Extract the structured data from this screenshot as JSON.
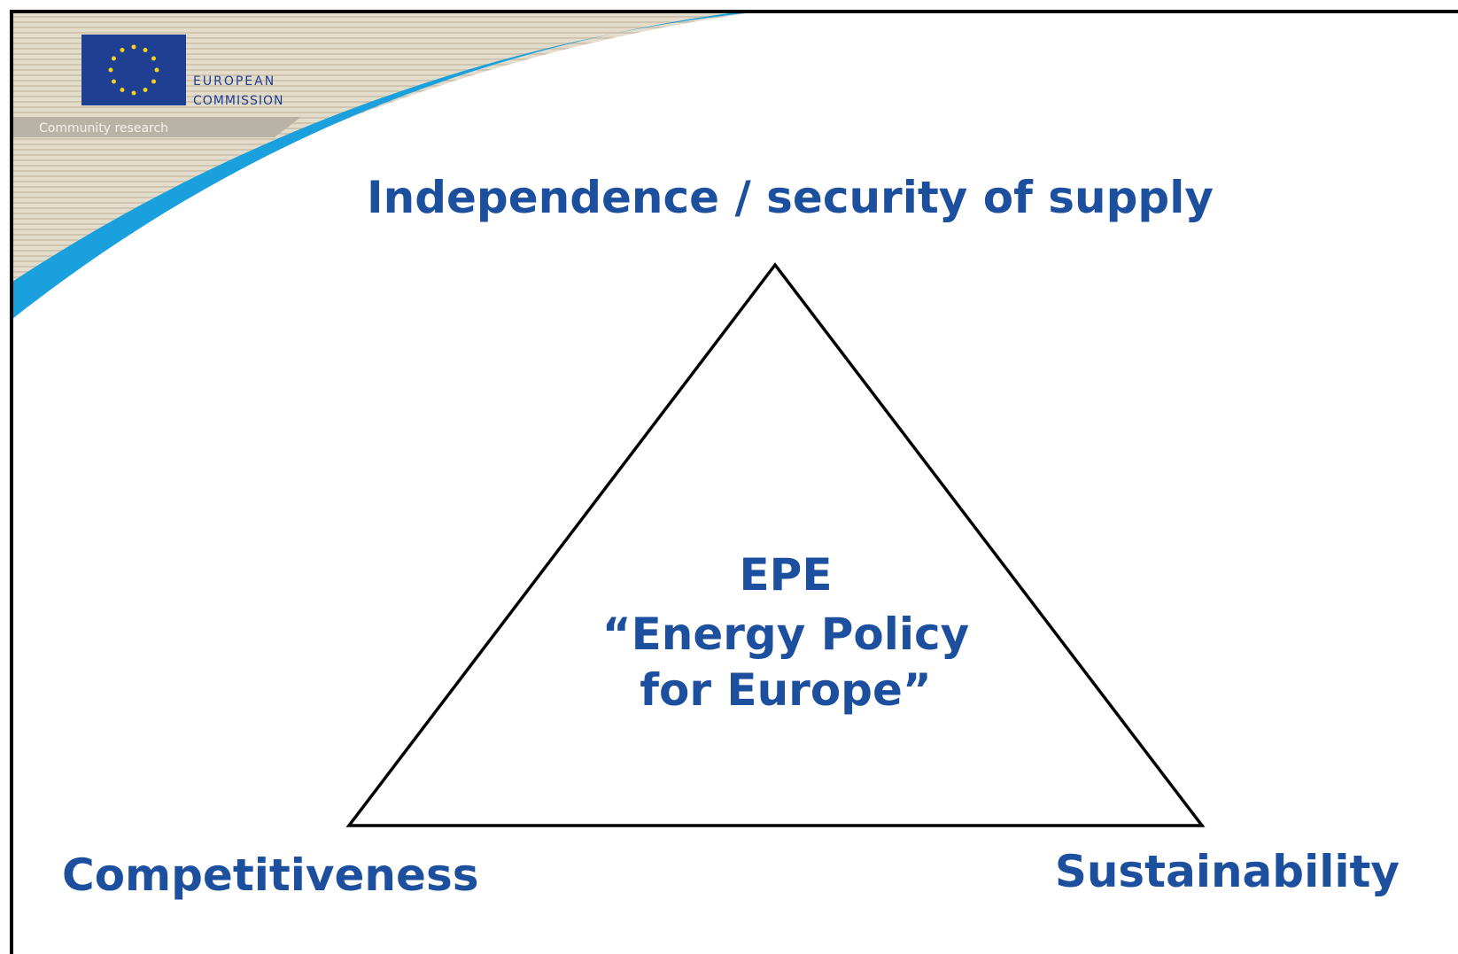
{
  "header": {
    "logo": [
      "EUROPEAN",
      "COMMISSION"
    ],
    "tagline": "Community research"
  },
  "nodes": [
    {
      "label": "Independence / security of supply"
    },
    {
      "label": "Competitiveness"
    },
    {
      "label": "Sustainability"
    }
  ],
  "center": {
    "lines": [
      "EPE",
      "“Energy Policy",
      "for Europe”"
    ]
  }
}
